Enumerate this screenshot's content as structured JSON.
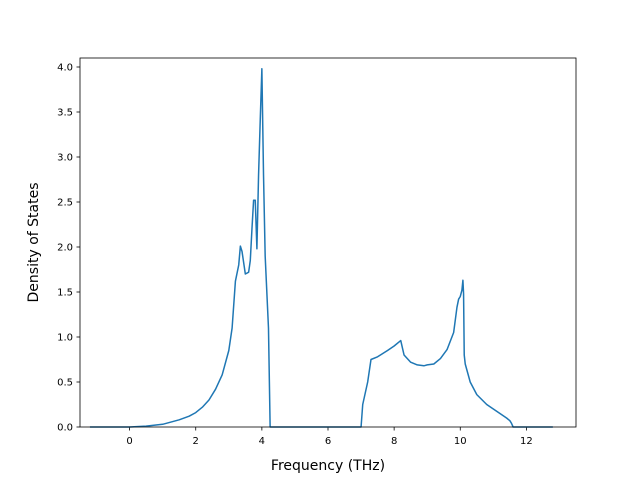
{
  "chart_data": {
    "type": "line",
    "title": "",
    "xlabel": "Frequency (THz)",
    "ylabel": "Density of States",
    "xlim": [
      -1.5,
      13.5
    ],
    "ylim": [
      0.0,
      4.1
    ],
    "xticks": [
      0,
      2,
      4,
      6,
      8,
      10,
      12
    ],
    "xtick_labels": [
      "0",
      "2",
      "4",
      "6",
      "8",
      "10",
      "12"
    ],
    "yticks": [
      0.0,
      0.5,
      1.0,
      1.5,
      2.0,
      2.5,
      3.0,
      3.5,
      4.0
    ],
    "ytick_labels": [
      "0.0",
      "0.5",
      "1.0",
      "1.5",
      "2.0",
      "2.5",
      "3.0",
      "3.5",
      "4.0"
    ],
    "grid": false,
    "legend": "none",
    "color": "#1f77b4",
    "series": [
      {
        "x": [
          -1.2,
          -0.5,
          0.0,
          0.5,
          1.0,
          1.5,
          1.8,
          2.0,
          2.2,
          2.4,
          2.6,
          2.8,
          3.0,
          3.1,
          3.2,
          3.3,
          3.35,
          3.4,
          3.5,
          3.6,
          3.65,
          3.7,
          3.75,
          3.8,
          3.85,
          3.9,
          3.95,
          4.0,
          4.05,
          4.1,
          4.2,
          4.25,
          4.3,
          5.0,
          6.0,
          7.0,
          7.05,
          7.2,
          7.3,
          7.5,
          7.8,
          8.0,
          8.2,
          8.25,
          8.3,
          8.5,
          8.7,
          8.9,
          9.0,
          9.2,
          9.4,
          9.6,
          9.8,
          9.9,
          9.95,
          10.0,
          10.05,
          10.08,
          10.1,
          10.12,
          10.15,
          10.3,
          10.5,
          10.8,
          11.0,
          11.2,
          11.4,
          11.5,
          11.55,
          11.6,
          11.7,
          12.0,
          12.8
        ],
        "y": [
          0.0,
          0.0,
          0.0,
          0.01,
          0.03,
          0.08,
          0.12,
          0.16,
          0.22,
          0.3,
          0.42,
          0.58,
          0.85,
          1.1,
          1.62,
          1.8,
          2.01,
          1.95,
          1.7,
          1.72,
          1.85,
          2.2,
          2.52,
          2.52,
          1.98,
          2.8,
          3.4,
          3.98,
          2.8,
          1.9,
          1.1,
          0.0,
          0.0,
          0.0,
          0.0,
          0.0,
          0.25,
          0.5,
          0.75,
          0.78,
          0.85,
          0.9,
          0.96,
          0.88,
          0.8,
          0.72,
          0.69,
          0.68,
          0.69,
          0.7,
          0.76,
          0.86,
          1.05,
          1.33,
          1.42,
          1.45,
          1.52,
          1.63,
          1.48,
          0.8,
          0.7,
          0.5,
          0.36,
          0.25,
          0.2,
          0.15,
          0.1,
          0.07,
          0.04,
          0.0,
          0.0,
          0.0,
          0.0
        ]
      }
    ]
  }
}
